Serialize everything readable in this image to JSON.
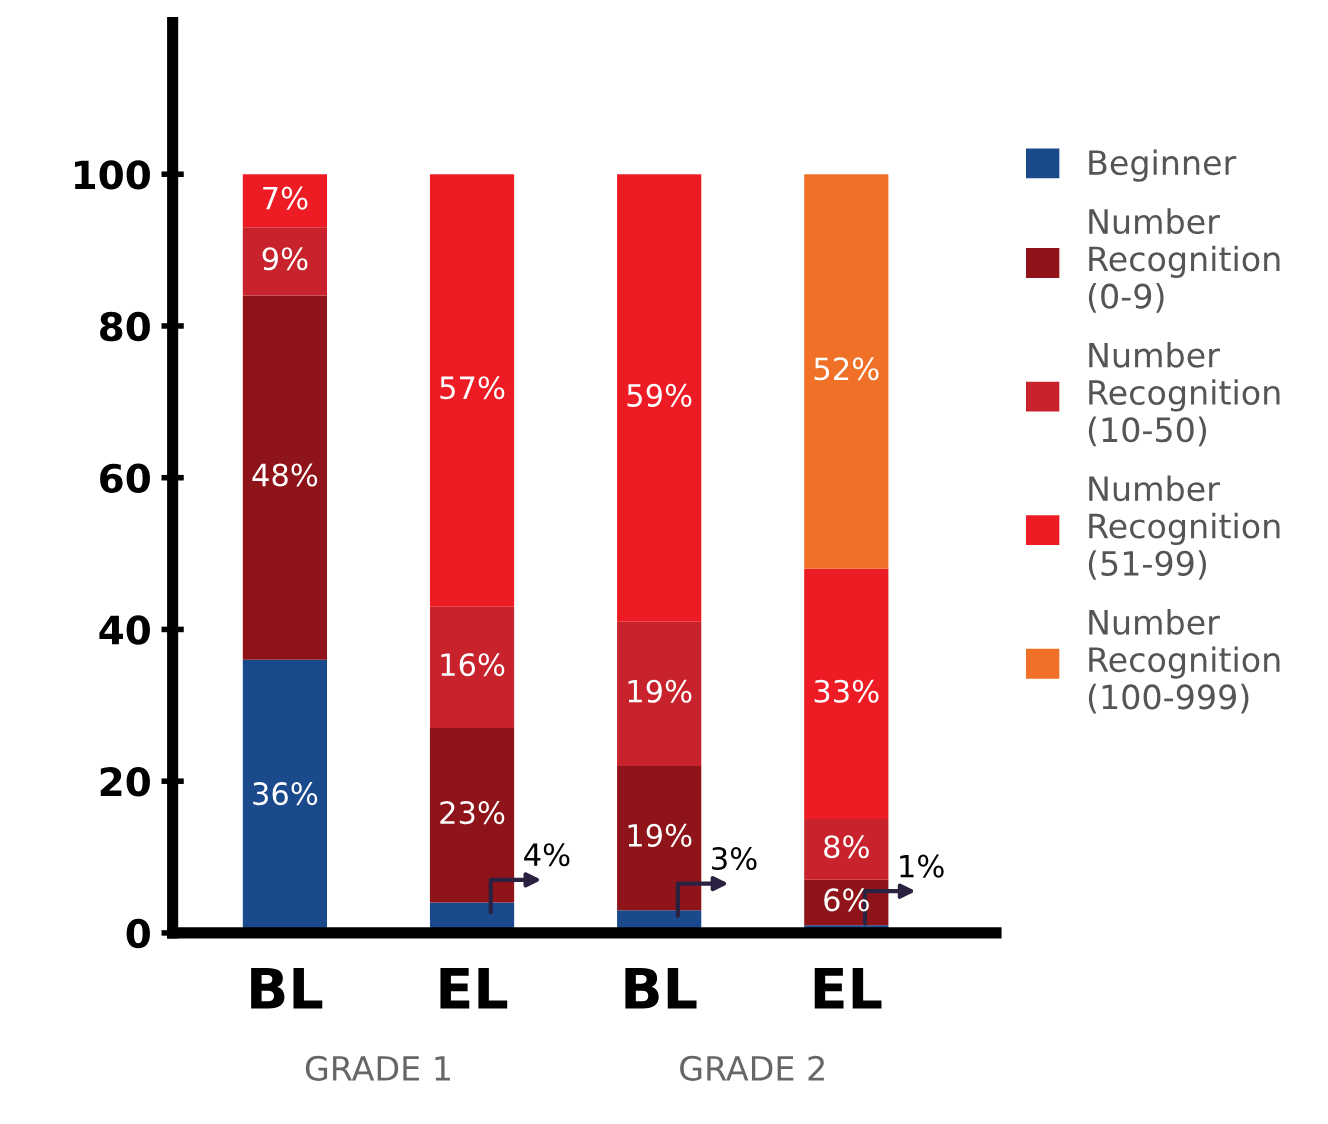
{
  "chart_data": {
    "type": "bar",
    "stacked": true,
    "categories": [
      "BL",
      "EL",
      "BL",
      "EL"
    ],
    "series": [
      {
        "name": "Beginner",
        "color": "#1b4a8c",
        "values": [
          36,
          4,
          3,
          1
        ],
        "value_labels": [
          "36%",
          "4%",
          "3%",
          "1%"
        ]
      },
      {
        "name": "Number Recognition (0-9)",
        "color": "#8e1419",
        "values": [
          48,
          23,
          19,
          6
        ],
        "value_labels": [
          "48%",
          "23%",
          "19%",
          "6%"
        ]
      },
      {
        "name": "Number Recognition (10-50)",
        "color": "#c8232c",
        "values": [
          9,
          16,
          19,
          8
        ],
        "value_labels": [
          "9%",
          "16%",
          "19%",
          "8%"
        ]
      },
      {
        "name": "Number Recognition (51-99)",
        "color": "#ed1c24",
        "values": [
          7,
          57,
          59,
          33
        ],
        "value_labels": [
          "7%",
          "57%",
          "59%",
          "33%"
        ]
      },
      {
        "name": "Number Recognition (100-999)",
        "color": "#f07027",
        "values": [
          0,
          0,
          0,
          52
        ],
        "value_labels": [
          null,
          null,
          null,
          "52%"
        ]
      }
    ],
    "ylim": [
      0,
      120
    ],
    "yticks": [
      0,
      20,
      40,
      60,
      80,
      100
    ],
    "grid": false,
    "legend": "right",
    "annotations": [
      "GRADE 1",
      "GRADE 2"
    ]
  }
}
